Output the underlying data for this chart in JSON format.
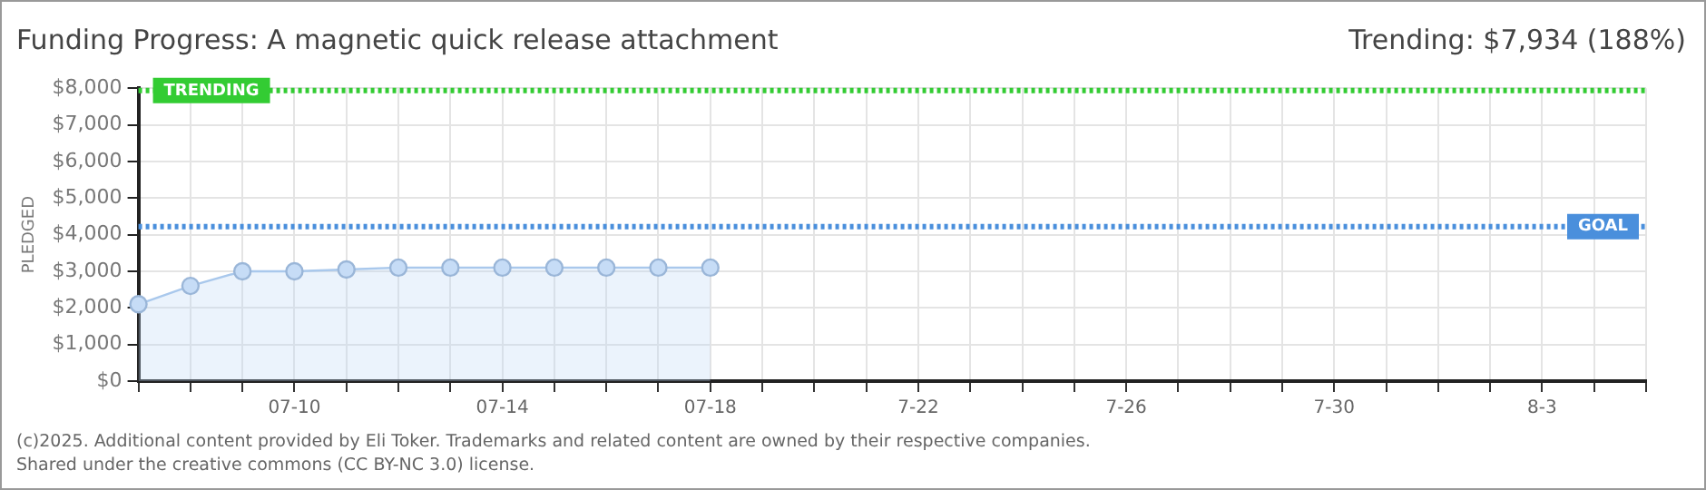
{
  "chart_data": {
    "type": "area",
    "title": "Funding Progress: A magnetic quick release attachment",
    "subtitle": "Trending: $7,934 (188%)",
    "ylabel": "PLEDGED",
    "categories": [
      null,
      null,
      null,
      "07-10",
      null,
      null,
      null,
      "07-14",
      null,
      null,
      null,
      "07-18",
      null,
      null,
      null,
      "7-22",
      null,
      null,
      null,
      "7-26",
      null,
      null,
      null,
      "7-30",
      null,
      null,
      null,
      "8-3",
      null,
      null
    ],
    "series": [
      {
        "color": "#a9c8ec",
        "values": [
          2100,
          2600,
          3000,
          3000,
          3050,
          3100,
          3100,
          3100,
          3100,
          3100,
          3100,
          3100,
          null,
          null,
          null,
          null,
          null,
          null,
          null,
          null,
          null,
          null,
          null,
          null,
          null,
          null,
          null,
          null,
          null,
          null
        ]
      }
    ],
    "ylim": [
      0,
      8000
    ],
    "yticks": [
      {
        "value": 0,
        "label": "$0"
      },
      {
        "value": 1000,
        "label": "$1,000"
      },
      {
        "value": 2000,
        "label": "$2,000"
      },
      {
        "value": 3000,
        "label": "$3,000"
      },
      {
        "value": 4000,
        "label": "$4,000"
      },
      {
        "value": 5000,
        "label": "$5,000"
      },
      {
        "value": 6000,
        "label": "$6,000"
      },
      {
        "value": 7000,
        "label": "$7,000"
      },
      {
        "value": 8000,
        "label": "$8,000"
      }
    ],
    "ref_lines": [
      {
        "axis": "y",
        "value": 7934,
        "label": "TRENDING",
        "color": "#33cc33",
        "line_style": "dotted"
      },
      {
        "axis": "y",
        "value": 4220,
        "label": "GOAL",
        "color": "#4a8fdc",
        "line_style": "dotted"
      }
    ],
    "annotations": [
      "(c)2025. Additional content provided by Eli Toker. Trademarks and related content are owned by their respective companies.",
      "Shared under the creative commons (CC BY-NC 3.0) license."
    ],
    "grid": true,
    "legend": false,
    "marker": "circle",
    "line_style": "solid"
  }
}
